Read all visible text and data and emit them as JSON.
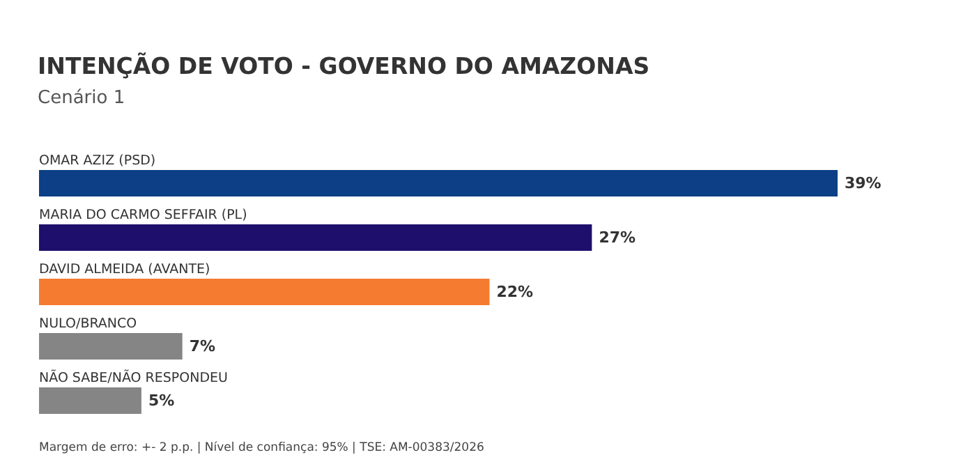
{
  "chart_data": {
    "type": "bar",
    "orientation": "horizontal",
    "title": "INTENÇÃO DE VOTO - GOVERNO DO AMAZONAS",
    "subtitle": "Cenário 1",
    "categories": [
      "OMAR AZIZ (PSD)",
      "MARIA DO CARMO SEFFAIR (PL)",
      "DAVID ALMEIDA (AVANTE)",
      "NULO/BRANCO",
      "NÃO SABE/NÃO RESPONDEU"
    ],
    "values": [
      39,
      27,
      22,
      7,
      5
    ],
    "colors": [
      "#0c3f86",
      "#1d0f6b",
      "#f47b30",
      "#858585",
      "#858585"
    ],
    "value_labels": [
      "39%",
      "27%",
      "22%",
      "7%",
      "5%"
    ],
    "annotations": [
      "Margem de erro: +- 2 p.p. | Nível de confiança: 95% | TSE: AM-00383/2026"
    ]
  }
}
